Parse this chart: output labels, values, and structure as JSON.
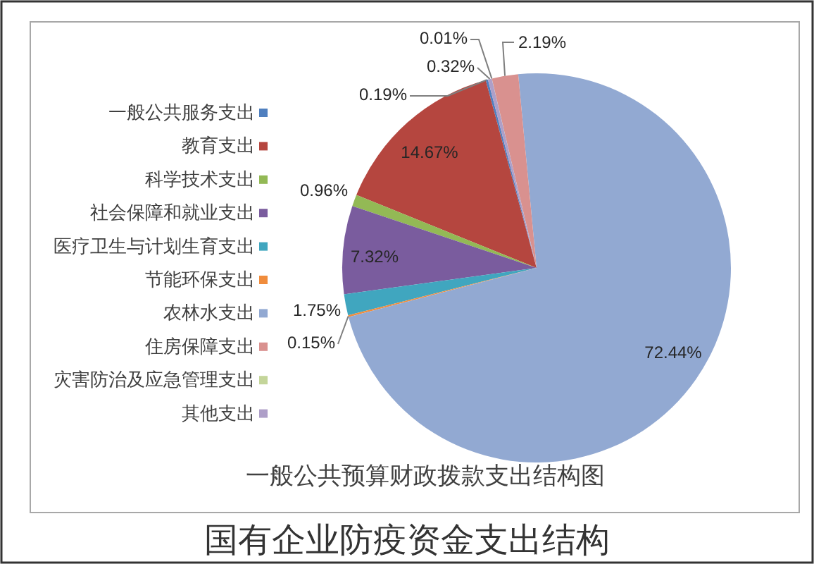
{
  "chart_data": {
    "type": "pie",
    "title": "一般公共预算财政拨款支出结构图",
    "categories": [
      "一般公共服务支出",
      "教育支出",
      "科学技术支出",
      "社会保障和就业支出",
      "医疗卫生与计划生育支出",
      "节能环保支出",
      "农林水支出",
      "住房保障支出",
      "灾害防治及应急管理支出",
      "其他支出"
    ],
    "values": [
      0.19,
      14.67,
      0.96,
      7.32,
      1.75,
      0.15,
      72.44,
      2.19,
      0.01,
      0.32
    ],
    "value_labels": [
      "0.19%",
      "14.67%",
      "0.96%",
      "7.32%",
      "1.75%",
      "0.15%",
      "72.44%",
      "2.19%",
      "0.01%",
      "0.32%"
    ],
    "colors": [
      "#4f7fbf",
      "#b5463f",
      "#93b955",
      "#7a5c9e",
      "#40a6bf",
      "#f08c3c",
      "#92a9d2",
      "#d9918f",
      "#c4d59a",
      "#ae9fc8"
    ],
    "legend": "left",
    "annotations": [
      "国有企业防疫资金支出结构"
    ]
  }
}
